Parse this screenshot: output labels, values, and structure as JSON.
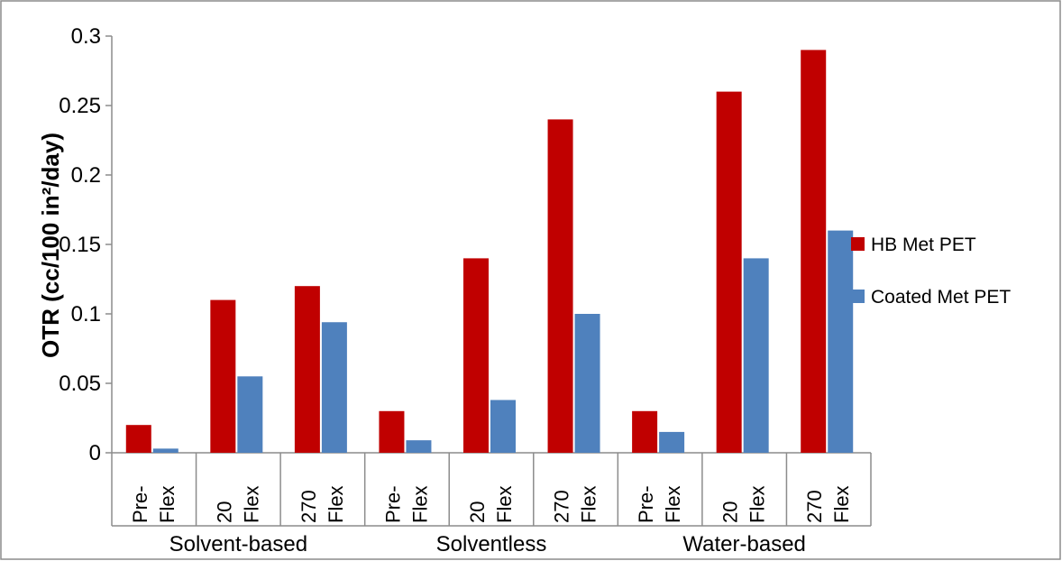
{
  "chart_data": {
    "type": "bar",
    "ylabel": "OTR (cc/100 in²/day)",
    "ylim": [
      0,
      0.3
    ],
    "yticks": [
      "0",
      "0.05",
      "0.1",
      "0.15",
      "0.2",
      "0.25",
      "0.3"
    ],
    "groups": [
      "Solvent-based",
      "Solventless",
      "Water-based"
    ],
    "categories": [
      {
        "label": [
          "Pre-",
          "Flex"
        ],
        "group": "Solvent-based"
      },
      {
        "label": [
          "20",
          "Flex"
        ],
        "group": "Solvent-based"
      },
      {
        "label": [
          "270",
          "Flex"
        ],
        "group": "Solvent-based"
      },
      {
        "label": [
          "Pre-",
          "Flex"
        ],
        "group": "Solventless"
      },
      {
        "label": [
          "20",
          "Flex"
        ],
        "group": "Solventless"
      },
      {
        "label": [
          "270",
          "Flex"
        ],
        "group": "Solventless"
      },
      {
        "label": [
          "Pre-",
          "Flex"
        ],
        "group": "Water-based"
      },
      {
        "label": [
          "20",
          "Flex"
        ],
        "group": "Water-based"
      },
      {
        "label": [
          "270",
          "Flex"
        ],
        "group": "Water-based"
      }
    ],
    "series": [
      {
        "name": "HB Met PET",
        "color": "#c00000",
        "values": [
          0.02,
          0.11,
          0.12,
          0.03,
          0.14,
          0.24,
          0.03,
          0.26,
          0.29
        ]
      },
      {
        "name": "Coated Met PET",
        "color": "#4f81bd",
        "values": [
          0.003,
          0.055,
          0.094,
          0.009,
          0.038,
          0.1,
          0.015,
          0.14,
          0.16
        ]
      }
    ],
    "legend": "right",
    "grid": false
  }
}
